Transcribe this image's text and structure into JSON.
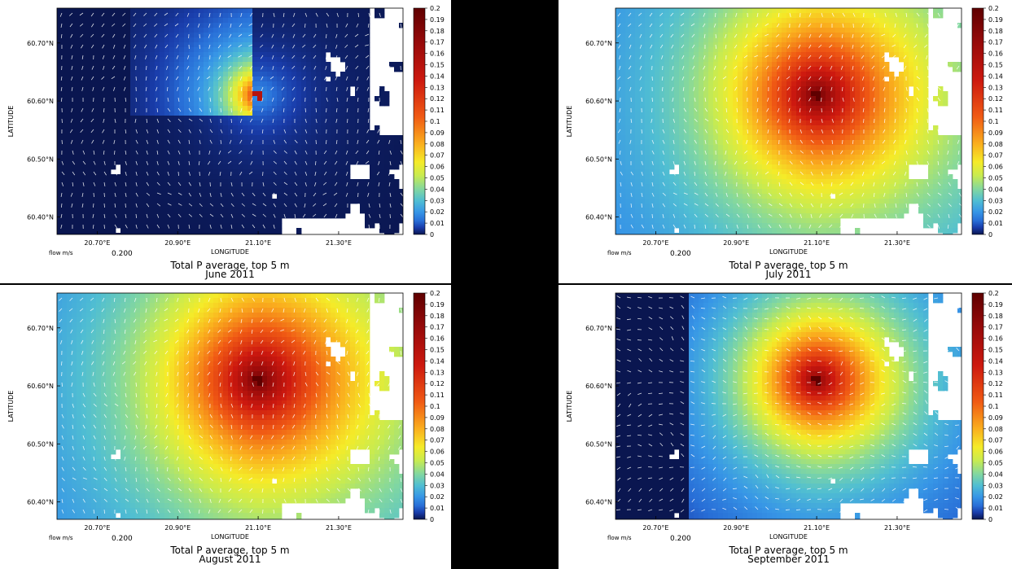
{
  "chart_data": [
    {
      "type": "heatmap",
      "title": "Total P average, top 5 m",
      "subtitle": "June 2011",
      "xlabel": "LONGITUDE",
      "ylabel": "LATITUDE",
      "x_ticks": [
        "20.70°E",
        "20.90°E",
        "21.10°E",
        "21.30°E"
      ],
      "x_tick_values": [
        20.7,
        20.9,
        21.1,
        21.3
      ],
      "y_ticks": [
        "60.70°N",
        "60.60°N",
        "60.50°N",
        "60.40°N"
      ],
      "y_tick_values": [
        60.7,
        60.6,
        60.5,
        60.4
      ],
      "xlim": [
        20.6,
        21.46
      ],
      "ylim": [
        60.37,
        60.76
      ],
      "vector_label": "flow m/s",
      "vector_scale": "0.200",
      "colorbar": {
        "min": 0,
        "max": 0.2,
        "ticks": [
          "0.2",
          "0.19",
          "0.18",
          "0.17",
          "0.16",
          "0.15",
          "0.14",
          "0.13",
          "0.12",
          "0.11",
          "0.1",
          "0.09",
          "0.08",
          "0.07",
          "0.06",
          "0.05",
          "0.04",
          "0.03",
          "0.02",
          "0.01",
          "0"
        ]
      },
      "source_lon": 21.1,
      "source_lat": 60.61,
      "peak_value": 0.15,
      "plume_extent": 0.4,
      "background_value": 0.0
    },
    {
      "type": "heatmap",
      "title": "Total P average, top 5 m",
      "subtitle": "July 2011",
      "xlabel": "LONGITUDE",
      "ylabel": "LATITUDE",
      "x_ticks": [
        "20.70°E",
        "20.90°E",
        "21.10°E",
        "21.30°E"
      ],
      "x_tick_values": [
        20.7,
        20.9,
        21.1,
        21.3
      ],
      "y_ticks": [
        "60.70°N",
        "60.60°N",
        "60.50°N",
        "60.40°N"
      ],
      "y_tick_values": [
        60.7,
        60.6,
        60.5,
        60.4
      ],
      "xlim": [
        20.6,
        21.46
      ],
      "ylim": [
        60.37,
        60.76
      ],
      "vector_label": "flow m/s",
      "vector_scale": "0.200",
      "colorbar": {
        "min": 0,
        "max": 0.2,
        "ticks": [
          "0.2",
          "0.19",
          "0.18",
          "0.17",
          "0.16",
          "0.15",
          "0.14",
          "0.13",
          "0.12",
          "0.11",
          "0.1",
          "0.09",
          "0.08",
          "0.07",
          "0.06",
          "0.05",
          "0.04",
          "0.03",
          "0.02",
          "0.01",
          "0"
        ]
      },
      "source_lon": 21.1,
      "source_lat": 60.61,
      "peak_value": 0.2,
      "plume_extent": 1.0,
      "background_value": 0.012
    },
    {
      "type": "heatmap",
      "title": "Total P average, top 5 m",
      "subtitle": "August 2011",
      "xlabel": "LONGITUDE",
      "ylabel": "LATITUDE",
      "x_ticks": [
        "20.70°E",
        "20.90°E",
        "21.10°E",
        "21.30°E"
      ],
      "x_tick_values": [
        20.7,
        20.9,
        21.1,
        21.3
      ],
      "y_ticks": [
        "60.70°N",
        "60.60°N",
        "60.50°N",
        "60.40°N"
      ],
      "y_tick_values": [
        60.7,
        60.6,
        60.5,
        60.4
      ],
      "xlim": [
        20.6,
        21.46
      ],
      "ylim": [
        60.37,
        60.76
      ],
      "vector_label": "flow m/s",
      "vector_scale": "0.200",
      "colorbar": {
        "min": 0,
        "max": 0.2,
        "ticks": [
          "0.2",
          "0.19",
          "0.18",
          "0.17",
          "0.16",
          "0.15",
          "0.14",
          "0.13",
          "0.12",
          "0.11",
          "0.1",
          "0.09",
          "0.08",
          "0.07",
          "0.06",
          "0.05",
          "0.04",
          "0.03",
          "0.02",
          "0.01",
          "0"
        ]
      },
      "source_lon": 21.1,
      "source_lat": 60.61,
      "peak_value": 0.2,
      "plume_extent": 1.1,
      "background_value": 0.012
    },
    {
      "type": "heatmap",
      "title": "Total P average, top 5 m",
      "subtitle": "September 2011",
      "xlabel": "LONGITUDE",
      "ylabel": "LATITUDE",
      "x_ticks": [
        "20.70°E",
        "20.90°E",
        "21.10°E",
        "21.30°E"
      ],
      "x_tick_values": [
        20.7,
        20.9,
        21.1,
        21.3
      ],
      "y_ticks": [
        "60.70°N",
        "60.60°N",
        "60.50°N",
        "60.40°N"
      ],
      "y_tick_values": [
        60.7,
        60.6,
        60.5,
        60.4
      ],
      "xlim": [
        20.6,
        21.46
      ],
      "ylim": [
        60.37,
        60.76
      ],
      "vector_label": "flow m/s",
      "vector_scale": "0.200",
      "colorbar": {
        "min": 0,
        "max": 0.2,
        "ticks": [
          "0.2",
          "0.19",
          "0.18",
          "0.17",
          "0.16",
          "0.15",
          "0.14",
          "0.13",
          "0.12",
          "0.11",
          "0.1",
          "0.09",
          "0.08",
          "0.07",
          "0.06",
          "0.05",
          "0.04",
          "0.03",
          "0.02",
          "0.01",
          "0"
        ]
      },
      "source_lon": 21.1,
      "source_lat": 60.61,
      "peak_value": 0.2,
      "plume_extent": 0.8,
      "background_value": 0.0
    }
  ]
}
